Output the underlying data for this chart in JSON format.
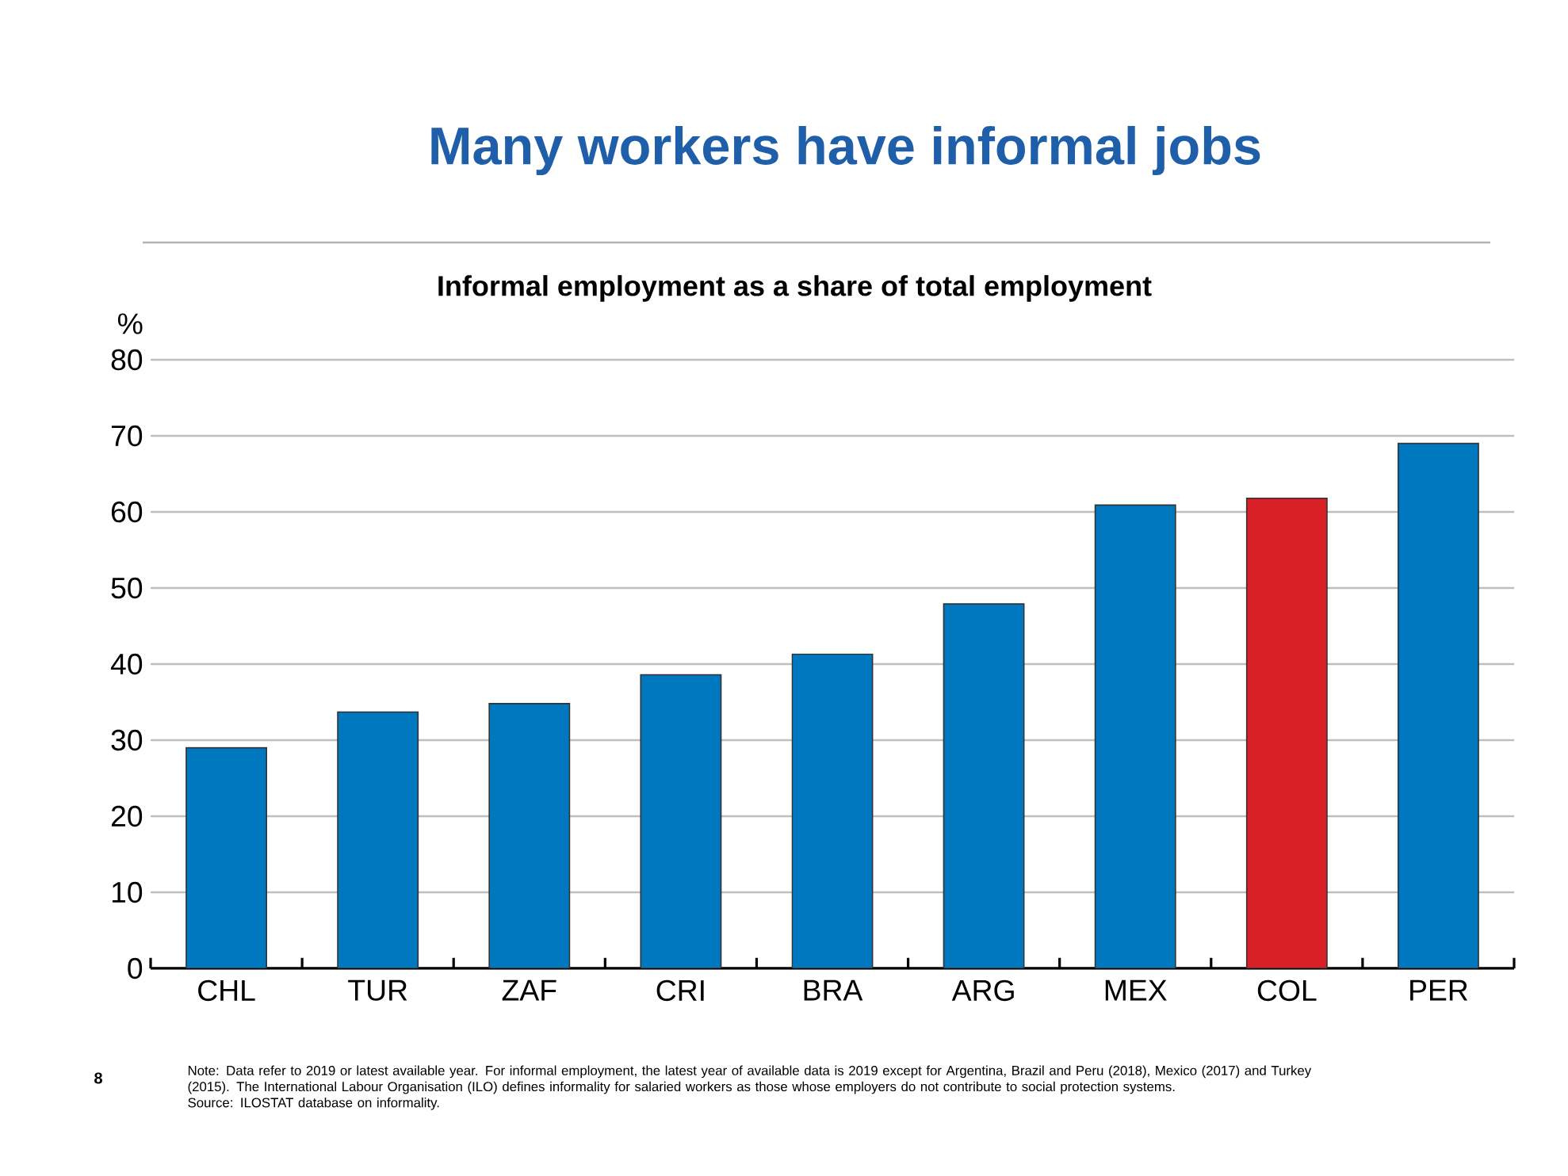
{
  "chart_data": {
    "type": "bar",
    "title": "Many workers have informal jobs",
    "subtitle": "Informal employment as a share of total employment",
    "ylabel": "%",
    "categories": [
      "CHL",
      "TUR",
      "ZAF",
      "CRI",
      "BRA",
      "ARG",
      "MEX",
      "COL",
      "PER"
    ],
    "values": [
      29,
      33.7,
      34.8,
      38.6,
      41.3,
      47.9,
      60.9,
      61.8,
      69
    ],
    "colors": [
      "#0078c0",
      "#0078c0",
      "#0078c0",
      "#0078c0",
      "#0078c0",
      "#0078c0",
      "#0078c0",
      "#d92027",
      "#0078c0"
    ],
    "ylim": [
      0,
      80
    ],
    "yticks": [
      0,
      10,
      20,
      30,
      40,
      50,
      60,
      70,
      80
    ],
    "grid": "y",
    "legend": false,
    "annotations": [
      "8",
      "Note: Data refer to 2019 or latest available year. For informal employment, the latest year of available data is 2019 except for Argentina, Brazil and Peru (2018), Mexico (2017) and Turkey (2015). The International Labour Organisation (ILO) defines informality for salaried workers as those whose employers do not contribute to social protection systems.",
      "Source: ILOSTAT database on informality."
    ]
  }
}
